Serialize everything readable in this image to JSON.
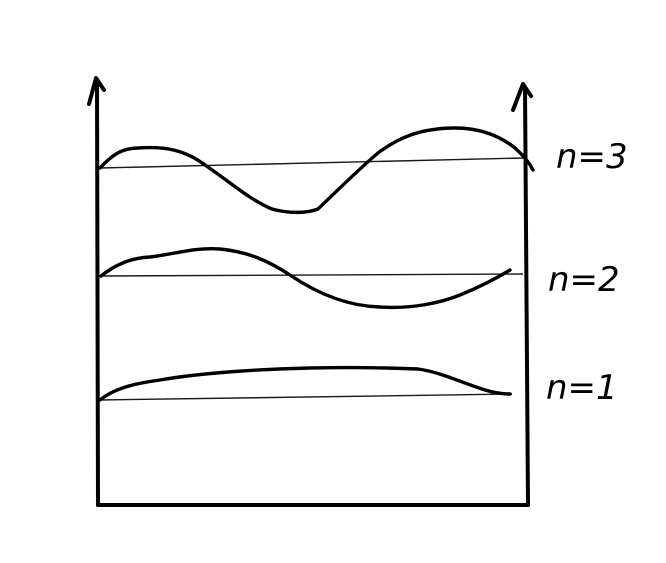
{
  "diagram": {
    "modes": [
      {
        "label": "n=3",
        "node_count": 2
      },
      {
        "label": "n=2",
        "node_count": 1
      },
      {
        "label": "n=1",
        "node_count": 0
      }
    ],
    "colors": {
      "ink": "#000000",
      "background": "#ffffff"
    }
  }
}
